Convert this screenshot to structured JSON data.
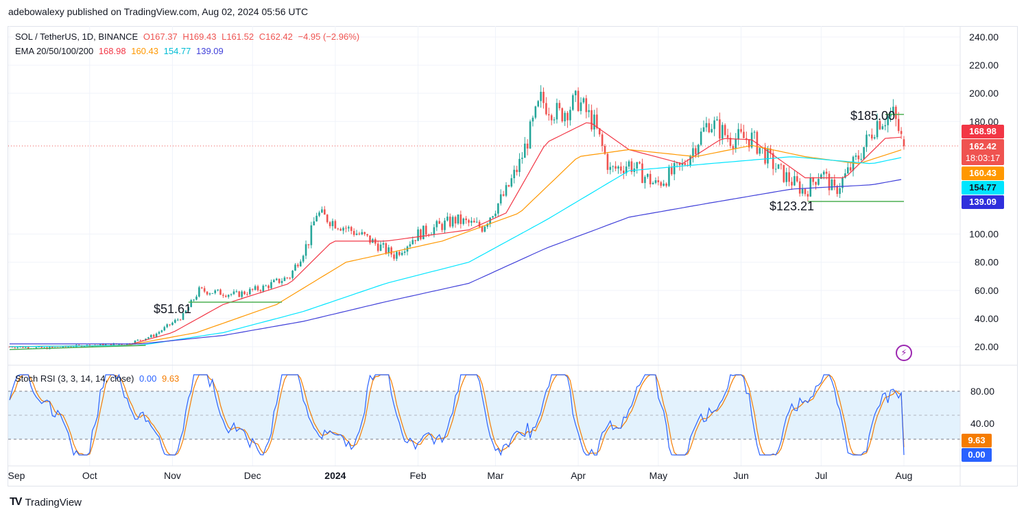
{
  "header": {
    "publish_line": "adebowalexy published on TradingView.com, Aug 02, 2024 05:56 UTC"
  },
  "legend": {
    "symbol": "SOL / TetherUS, 1D, BINANCE",
    "open": "O167.37",
    "high": "H169.43",
    "low": "L161.52",
    "close": "C162.42",
    "change": "−4.95 (−2.96%)",
    "ema_label": "EMA 20/50/100/200",
    "ema20": "168.98",
    "ema50": "160.43",
    "ema100": "154.77",
    "ema200": "139.09",
    "rsi_label": "Stoch RSI (3, 3, 14, 14, close)",
    "rsi_k": "0.00",
    "rsi_d": "9.63"
  },
  "price_tags": {
    "ema20": "168.98",
    "last": "162.42",
    "countdown": "18:03:17",
    "ema50": "160.43",
    "ema100": "154.77",
    "ema200": "139.09"
  },
  "rsi_tags": {
    "d": "9.63",
    "k": "0.00"
  },
  "annotations": {
    "high": "$185.00",
    "low": "$123.21",
    "breakout": "$51.61"
  },
  "footer": {
    "brand": "TradingView"
  },
  "colors": {
    "up": "#26a69a",
    "down": "#ef5350",
    "ema20": "#f23645",
    "ema50": "#ff9800",
    "ema100": "#00e5ff",
    "ema200": "#3f3fd9",
    "rsi_k": "#2962ff",
    "rsi_d": "#f57c00",
    "support_line": "#4caf50",
    "rsi_band": "#e3f2fd"
  },
  "chart_data": {
    "type": "candlestick",
    "x_labels": [
      "Sep",
      "Oct",
      "Nov",
      "Dec",
      "2024",
      "Feb",
      "Mar",
      "Apr",
      "May",
      "Jun",
      "Jul",
      "Aug"
    ],
    "y_ticks": [
      "240.00",
      "220.00",
      "200.00",
      "180.00",
      "100.00",
      "80.00",
      "60.00",
      "40.00",
      "20.00"
    ],
    "ylim": [
      10,
      245
    ],
    "rsi_ticks": [
      "80.00",
      "40.00"
    ],
    "rsi_band": [
      20,
      80
    ],
    "close_path": [
      [
        "2023-09-01",
        20
      ],
      [
        "2023-09-15",
        19
      ],
      [
        "2023-10-01",
        21
      ],
      [
        "2023-10-15",
        22
      ],
      [
        "2023-10-25",
        28
      ],
      [
        "2023-11-05",
        42
      ],
      [
        "2023-11-11",
        60
      ],
      [
        "2023-11-25",
        57
      ],
      [
        "2023-12-05",
        62
      ],
      [
        "2023-12-15",
        70
      ],
      [
        "2023-12-22",
        95
      ],
      [
        "2023-12-25",
        115
      ],
      [
        "2024-01-01",
        108
      ],
      [
        "2024-01-12",
        98
      ],
      [
        "2024-01-23",
        85
      ],
      [
        "2024-02-01",
        100
      ],
      [
        "2024-02-15",
        110
      ],
      [
        "2024-02-25",
        105
      ],
      [
        "2024-03-05",
        130
      ],
      [
        "2024-03-10",
        150
      ],
      [
        "2024-03-18",
        195
      ],
      [
        "2024-03-25",
        185
      ],
      [
        "2024-04-01",
        195
      ],
      [
        "2024-04-07",
        178
      ],
      [
        "2024-04-13",
        145
      ],
      [
        "2024-04-20",
        150
      ],
      [
        "2024-04-30",
        135
      ],
      [
        "2024-05-10",
        148
      ],
      [
        "2024-05-20",
        180
      ],
      [
        "2024-05-28",
        168
      ],
      [
        "2024-06-05",
        168
      ],
      [
        "2024-06-15",
        145
      ],
      [
        "2024-06-25",
        130
      ],
      [
        "2024-07-01",
        145
      ],
      [
        "2024-07-06",
        130
      ],
      [
        "2024-07-15",
        155
      ],
      [
        "2024-07-22",
        180
      ],
      [
        "2024-07-28",
        185
      ],
      [
        "2024-08-01",
        162.42
      ]
    ],
    "ema20": [
      [
        "2023-09-01",
        20
      ],
      [
        "2023-10-15",
        21
      ],
      [
        "2023-11-01",
        30
      ],
      [
        "2023-11-20",
        50
      ],
      [
        "2023-12-15",
        65
      ],
      [
        "2023-12-31",
        95
      ],
      [
        "2024-01-20",
        95
      ],
      [
        "2024-02-20",
        103
      ],
      [
        "2024-03-05",
        115
      ],
      [
        "2024-03-20",
        165
      ],
      [
        "2024-04-05",
        180
      ],
      [
        "2024-04-20",
        160
      ],
      [
        "2024-05-10",
        150
      ],
      [
        "2024-05-25",
        168
      ],
      [
        "2024-06-05",
        167
      ],
      [
        "2024-06-25",
        140
      ],
      [
        "2024-07-10",
        140
      ],
      [
        "2024-07-25",
        168
      ],
      [
        "2024-08-01",
        168.98
      ]
    ],
    "ema50": [
      [
        "2023-09-01",
        20
      ],
      [
        "2023-10-15",
        21
      ],
      [
        "2023-11-10",
        30
      ],
      [
        "2023-12-10",
        50
      ],
      [
        "2024-01-05",
        80
      ],
      [
        "2024-02-10",
        95
      ],
      [
        "2024-03-10",
        115
      ],
      [
        "2024-04-01",
        155
      ],
      [
        "2024-04-20",
        160
      ],
      [
        "2024-05-15",
        155
      ],
      [
        "2024-06-05",
        163
      ],
      [
        "2024-06-25",
        155
      ],
      [
        "2024-07-15",
        150
      ],
      [
        "2024-08-01",
        160.43
      ]
    ],
    "ema100": [
      [
        "2023-09-01",
        20
      ],
      [
        "2023-10-20",
        21
      ],
      [
        "2023-11-20",
        30
      ],
      [
        "2023-12-20",
        45
      ],
      [
        "2024-01-20",
        65
      ],
      [
        "2024-02-20",
        80
      ],
      [
        "2024-03-20",
        110
      ],
      [
        "2024-04-20",
        145
      ],
      [
        "2024-05-20",
        150
      ],
      [
        "2024-06-20",
        155
      ],
      [
        "2024-07-20",
        150
      ],
      [
        "2024-08-01",
        154.77
      ]
    ],
    "ema200": [
      [
        "2023-09-01",
        22
      ],
      [
        "2023-10-20",
        22
      ],
      [
        "2023-11-20",
        28
      ],
      [
        "2023-12-20",
        38
      ],
      [
        "2024-01-20",
        52
      ],
      [
        "2024-02-20",
        65
      ],
      [
        "2024-03-20",
        90
      ],
      [
        "2024-04-20",
        112
      ],
      [
        "2024-05-20",
        122
      ],
      [
        "2024-06-20",
        132
      ],
      [
        "2024-07-20",
        135
      ],
      [
        "2024-08-01",
        139.09
      ]
    ],
    "support_lines": [
      {
        "label": "$51.61",
        "from": "2023-11-07",
        "to": "2023-12-12",
        "y": 51.61
      },
      {
        "label": "$123.21",
        "from": "2024-06-26",
        "to": "2024-08-01",
        "y": 123.21
      },
      {
        "label": "$185.00",
        "from": "2024-07-25",
        "to": "2024-08-01",
        "y": 185
      },
      {
        "label": "",
        "from": "2023-09-01",
        "to": "2023-10-22",
        "y": 18,
        "y_end": 21
      }
    ]
  }
}
